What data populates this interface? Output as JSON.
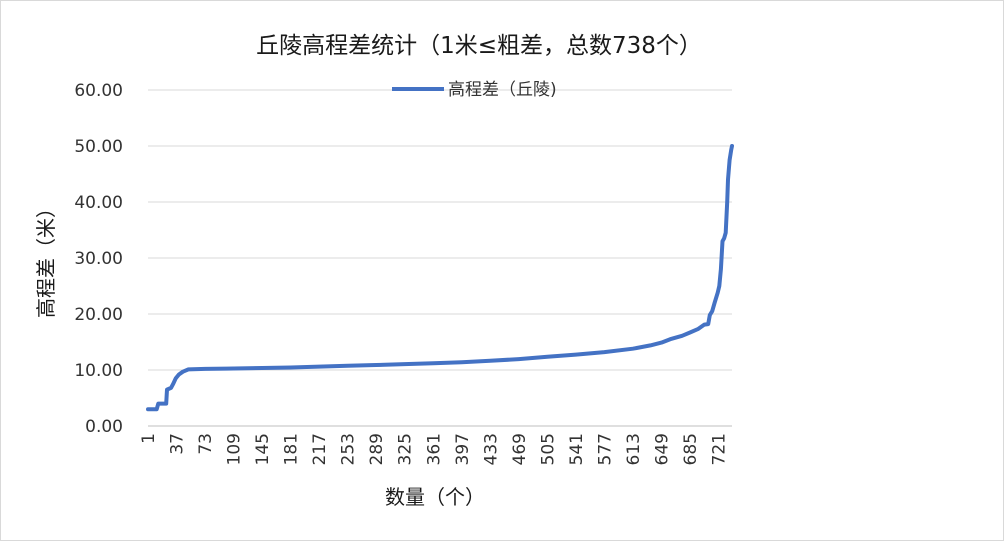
{
  "chart_data": {
    "type": "line",
    "title": "丘陵高程差统计（1米≤粗差，总数738个）",
    "xlabel": "数量（个）",
    "ylabel": "高程差（米）",
    "ylim": [
      0,
      60
    ],
    "yticks": [
      "0.00",
      "10.00",
      "20.00",
      "30.00",
      "40.00",
      "50.00",
      "60.00"
    ],
    "xlim": [
      1,
      738
    ],
    "xticks": [
      "1",
      "37",
      "73",
      "109",
      "145",
      "181",
      "217",
      "253",
      "289",
      "325",
      "361",
      "397",
      "433",
      "469",
      "505",
      "541",
      "577",
      "613",
      "649",
      "685",
      "721"
    ],
    "grid": true,
    "legend_position": "top",
    "series": [
      {
        "name": "高程差（丘陵)",
        "color": "#4472c4",
        "points": [
          [
            1,
            3.0
          ],
          [
            12,
            3.0
          ],
          [
            14,
            4.0
          ],
          [
            24,
            4.0
          ],
          [
            25,
            6.5
          ],
          [
            30,
            6.8
          ],
          [
            33,
            7.6
          ],
          [
            36,
            8.5
          ],
          [
            40,
            9.2
          ],
          [
            45,
            9.7
          ],
          [
            52,
            10.1
          ],
          [
            73,
            10.2
          ],
          [
            100,
            10.25
          ],
          [
            145,
            10.35
          ],
          [
            181,
            10.45
          ],
          [
            217,
            10.6
          ],
          [
            253,
            10.75
          ],
          [
            289,
            10.9
          ],
          [
            325,
            11.05
          ],
          [
            361,
            11.2
          ],
          [
            397,
            11.4
          ],
          [
            433,
            11.65
          ],
          [
            469,
            11.95
          ],
          [
            505,
            12.35
          ],
          [
            541,
            12.75
          ],
          [
            577,
            13.2
          ],
          [
            613,
            13.8
          ],
          [
            635,
            14.4
          ],
          [
            649,
            14.9
          ],
          [
            660,
            15.5
          ],
          [
            675,
            16.1
          ],
          [
            685,
            16.7
          ],
          [
            695,
            17.3
          ],
          [
            703,
            18.1
          ],
          [
            708,
            18.2
          ],
          [
            710,
            19.8
          ],
          [
            713,
            20.5
          ],
          [
            716,
            22.0
          ],
          [
            720,
            23.8
          ],
          [
            722,
            25.0
          ],
          [
            724,
            28.0
          ],
          [
            726,
            33.0
          ],
          [
            728,
            33.5
          ],
          [
            730,
            34.5
          ],
          [
            732,
            40.0
          ],
          [
            733,
            44.0
          ],
          [
            735,
            47.5
          ],
          [
            737,
            49.3
          ],
          [
            738,
            50.0
          ]
        ]
      }
    ]
  }
}
